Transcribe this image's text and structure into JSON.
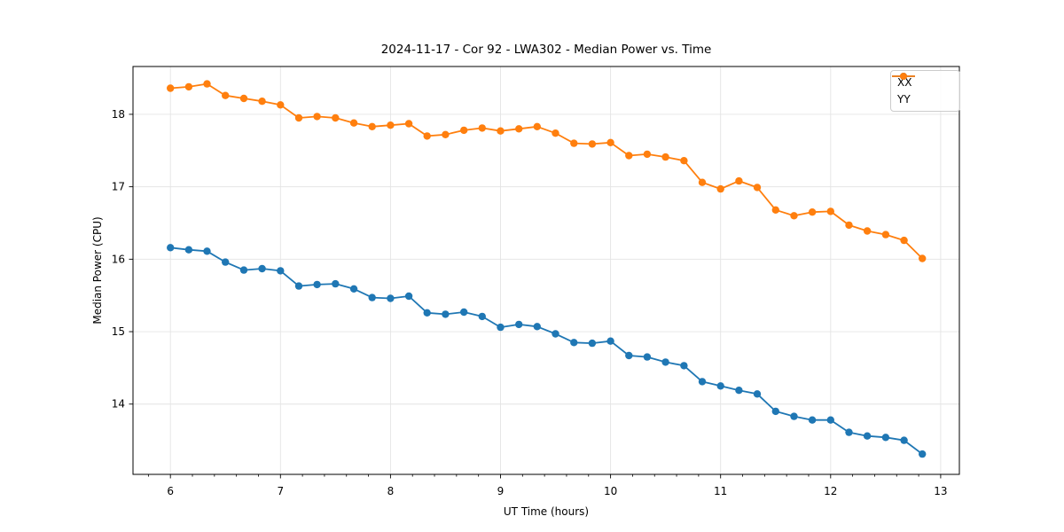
{
  "chart_data": {
    "type": "line",
    "title": "2024-11-17 - Cor 92 - LWA302 - Median Power vs. Time",
    "xlabel": "UT Time (hours)",
    "ylabel": "Median Power (CPU)",
    "xlim": [
      5.66,
      13.17
    ],
    "ylim": [
      13.03,
      18.66
    ],
    "x_ticks": [
      6,
      7,
      8,
      9,
      10,
      11,
      12,
      13
    ],
    "y_ticks": [
      14,
      15,
      16,
      17,
      18
    ],
    "x_minor_step": 0.2,
    "grid": true,
    "grid_color": "#e4e4e4",
    "legend_position": "upper right",
    "background_color": "#ffffff",
    "x": [
      6.0,
      6.167,
      6.333,
      6.5,
      6.667,
      6.833,
      7.0,
      7.167,
      7.333,
      7.5,
      7.667,
      7.833,
      8.0,
      8.167,
      8.333,
      8.5,
      8.667,
      8.833,
      9.0,
      9.167,
      9.333,
      9.5,
      9.667,
      9.833,
      10.0,
      10.167,
      10.333,
      10.5,
      10.667,
      10.833,
      11.0,
      11.167,
      11.333,
      11.5,
      11.667,
      11.833,
      12.0,
      12.167,
      12.333,
      12.5,
      12.667,
      12.833
    ],
    "series": [
      {
        "name": "XX",
        "color": "#1f77b4",
        "values": [
          16.16,
          16.13,
          16.11,
          15.96,
          15.85,
          15.87,
          15.84,
          15.63,
          15.65,
          15.66,
          15.59,
          15.47,
          15.46,
          15.49,
          15.26,
          15.24,
          15.27,
          15.21,
          15.06,
          15.1,
          15.07,
          14.97,
          14.85,
          14.84,
          14.87,
          14.67,
          14.65,
          14.58,
          14.53,
          14.31,
          14.25,
          14.19,
          14.14,
          13.9,
          13.83,
          13.78,
          13.78,
          13.61,
          13.56,
          13.54,
          13.5,
          13.31
        ]
      },
      {
        "name": "YY",
        "color": "#ff7f0e",
        "values": [
          18.36,
          18.38,
          18.42,
          18.26,
          18.22,
          18.18,
          18.13,
          17.95,
          17.97,
          17.95,
          17.88,
          17.83,
          17.85,
          17.87,
          17.7,
          17.72,
          17.78,
          17.81,
          17.77,
          17.8,
          17.83,
          17.74,
          17.6,
          17.59,
          17.61,
          17.43,
          17.45,
          17.41,
          17.36,
          17.06,
          16.97,
          17.08,
          16.99,
          16.68,
          16.6,
          16.65,
          16.66,
          16.47,
          16.39,
          16.34,
          16.26,
          16.01
        ]
      }
    ]
  }
}
